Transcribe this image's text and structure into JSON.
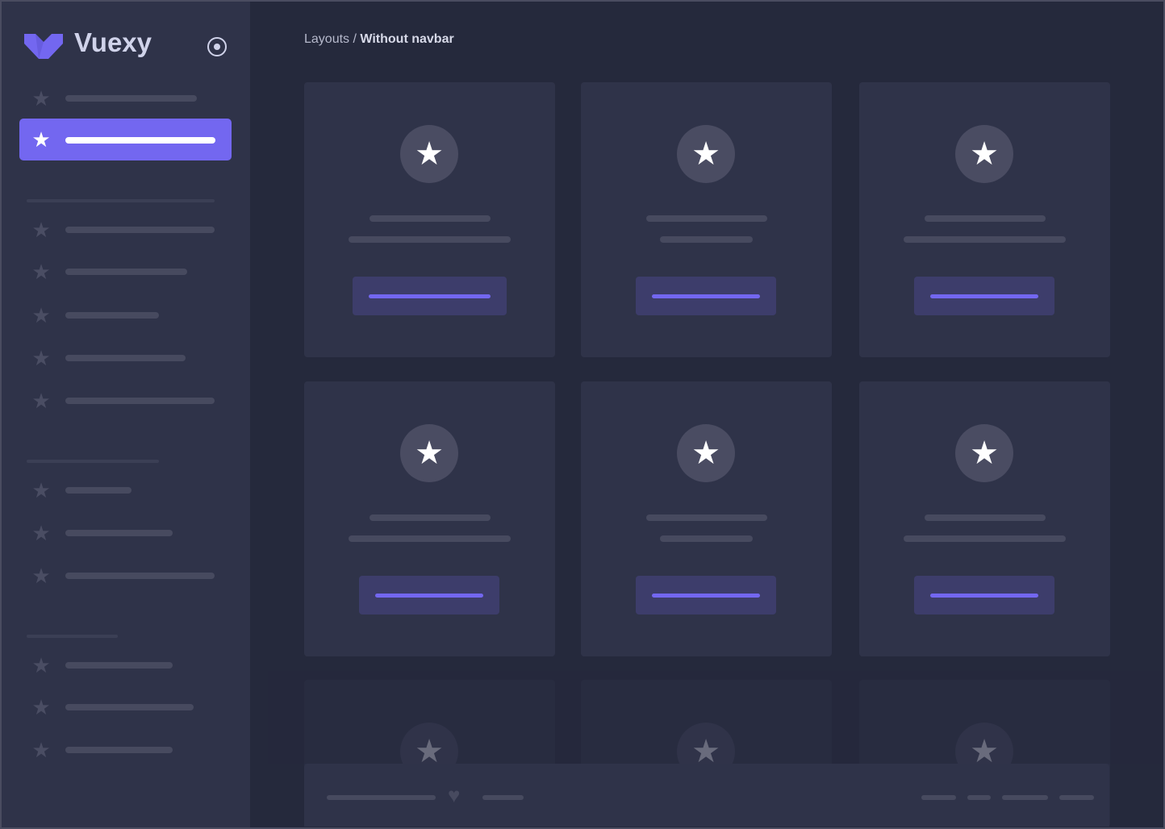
{
  "brand": {
    "name": "Vuexy",
    "logo_color": "#7367f0"
  },
  "breadcrumb": {
    "parent": "Layouts",
    "separator": " / ",
    "current": "Without navbar"
  },
  "colors": {
    "accent": "#7367f0",
    "sidebar": "#2f3349",
    "background": "#25293c",
    "card": "#2f3349"
  },
  "icons": {
    "menu_item": "star-icon",
    "toggle": "radio-circle-icon",
    "footer": "heart-icon"
  }
}
